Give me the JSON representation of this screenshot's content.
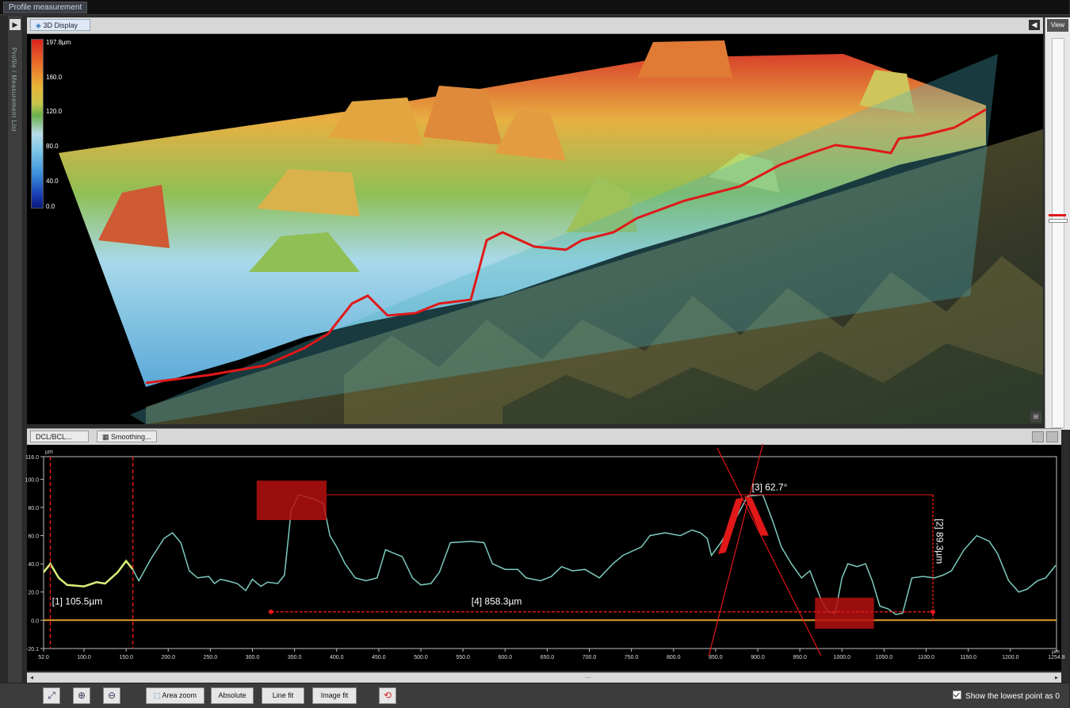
{
  "window": {
    "title": "Profile measurement"
  },
  "left_panel": {
    "label": "Profile / Measurement List"
  },
  "view3d": {
    "tab_label": "3D Display",
    "colorbar_labels": [
      "197.8µm",
      "160.0",
      "120.0",
      "80.0",
      "40.0",
      "0.0"
    ]
  },
  "view_panel": {
    "label": "View"
  },
  "profile": {
    "tabs": [
      "DCL/BCL...",
      "Smoothing..."
    ],
    "y_unit": "µm",
    "x_unit": "µm",
    "y_ticks": [
      "116.0",
      "100.0",
      "80.0",
      "60.0",
      "40.0",
      "20.0",
      "0.0",
      "-20.1"
    ],
    "x_ticks": [
      "52.0",
      "100.0",
      "150.0",
      "200.0",
      "250.0",
      "300.0",
      "350.0",
      "400.0",
      "450.0",
      "500.0",
      "550.0",
      "600.0",
      "650.0",
      "700.0",
      "750.0",
      "800.0",
      "850.0",
      "900.0",
      "950.0",
      "1000.0",
      "1050.0",
      "1100.0",
      "1150.0",
      "1200.0",
      "1254.8"
    ],
    "annotations": {
      "m1": "[1] 105.5µm",
      "m2": "[2] 89.3µm",
      "m3": "[3] 62.7°",
      "m4": "[4] 858.3µm"
    }
  },
  "toolbar": {
    "area_zoom": "Area zoom",
    "absolute": "Absolute",
    "line_fit": "Line fit",
    "image_fit": "Image fit",
    "show_lowest": "Show the lowest point as 0",
    "show_lowest_checked": true
  },
  "colors": {
    "profile_line": "#7ccbc0",
    "selected_segment": "#d7f07a",
    "measure_red": "#e01818",
    "baseline": "#e39a2c"
  }
}
